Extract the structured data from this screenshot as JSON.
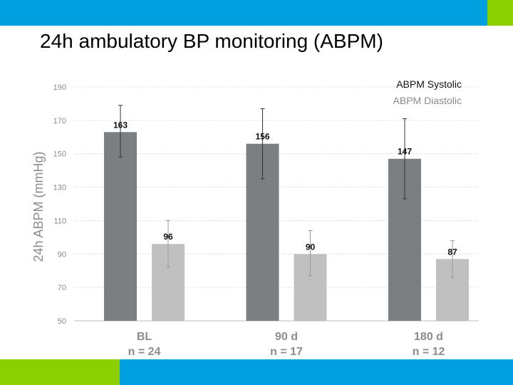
{
  "slide": {
    "title": "24h ambulatory BP monitoring (ABPM)",
    "colors": {
      "blue": "#009fdf",
      "green": "#8ccf00"
    }
  },
  "chart_data": {
    "type": "bar",
    "title": "",
    "xlabel": "",
    "ylabel": "24h ABPM (mmHg)",
    "ylim": [
      50,
      190
    ],
    "yticks": [
      50,
      70,
      90,
      110,
      130,
      150,
      170,
      190
    ],
    "grid": true,
    "legend_position": "top-right",
    "categories": [
      "BL",
      "90 d",
      "180 d"
    ],
    "category_n": [
      "n = 24",
      "n = 17",
      "n = 12"
    ],
    "series": [
      {
        "name": "ABPM Systolic",
        "color": "#7b7f82",
        "values": [
          163,
          156,
          147
        ],
        "err_high": [
          179,
          177,
          171
        ],
        "err_low": [
          148,
          135,
          123
        ]
      },
      {
        "name": "ABPM Diastolic",
        "color": "#c0c0c0",
        "values": [
          96,
          90,
          87
        ],
        "err_high": [
          110,
          104,
          98
        ],
        "err_low": [
          82,
          77,
          76
        ]
      }
    ]
  }
}
